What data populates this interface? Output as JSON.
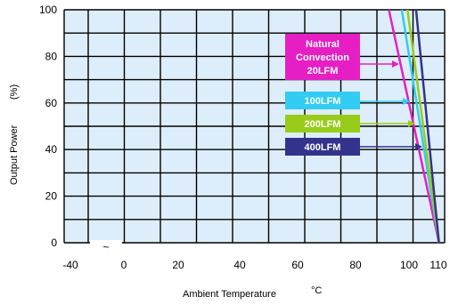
{
  "chart_data": {
    "type": "line",
    "xlabel": "Ambient Temperature",
    "xunit": "°C",
    "ylabel": "Output Power",
    "yunit": "(%)",
    "x_tick_labels": [
      "-40",
      "0",
      "20",
      "40",
      "60",
      "80",
      "100",
      "110"
    ],
    "y_tick_labels": [
      "0",
      "20",
      "40",
      "60",
      "80",
      "100"
    ],
    "axis_break_mark": "~",
    "ylim": [
      0,
      100
    ],
    "grid": true,
    "plot_background": "#ddeefa",
    "series": [
      {
        "name_lines": [
          "Natural",
          "Convection",
          "20LFM"
        ],
        "color": "#e61fc4",
        "x": [
          92.5,
          110
        ],
        "y": [
          100,
          0
        ]
      },
      {
        "name_lines": [
          "100LFM"
        ],
        "color": "#33ccf2",
        "x": [
          97,
          110
        ],
        "y": [
          100,
          0
        ]
      },
      {
        "name_lines": [
          "200LFM"
        ],
        "color": "#99cc1a",
        "x": [
          99,
          110
        ],
        "y": [
          100,
          0
        ]
      },
      {
        "name_lines": [
          "400LFM"
        ],
        "color": "#33338c",
        "x": [
          102,
          110
        ],
        "y": [
          100,
          0
        ]
      }
    ]
  }
}
